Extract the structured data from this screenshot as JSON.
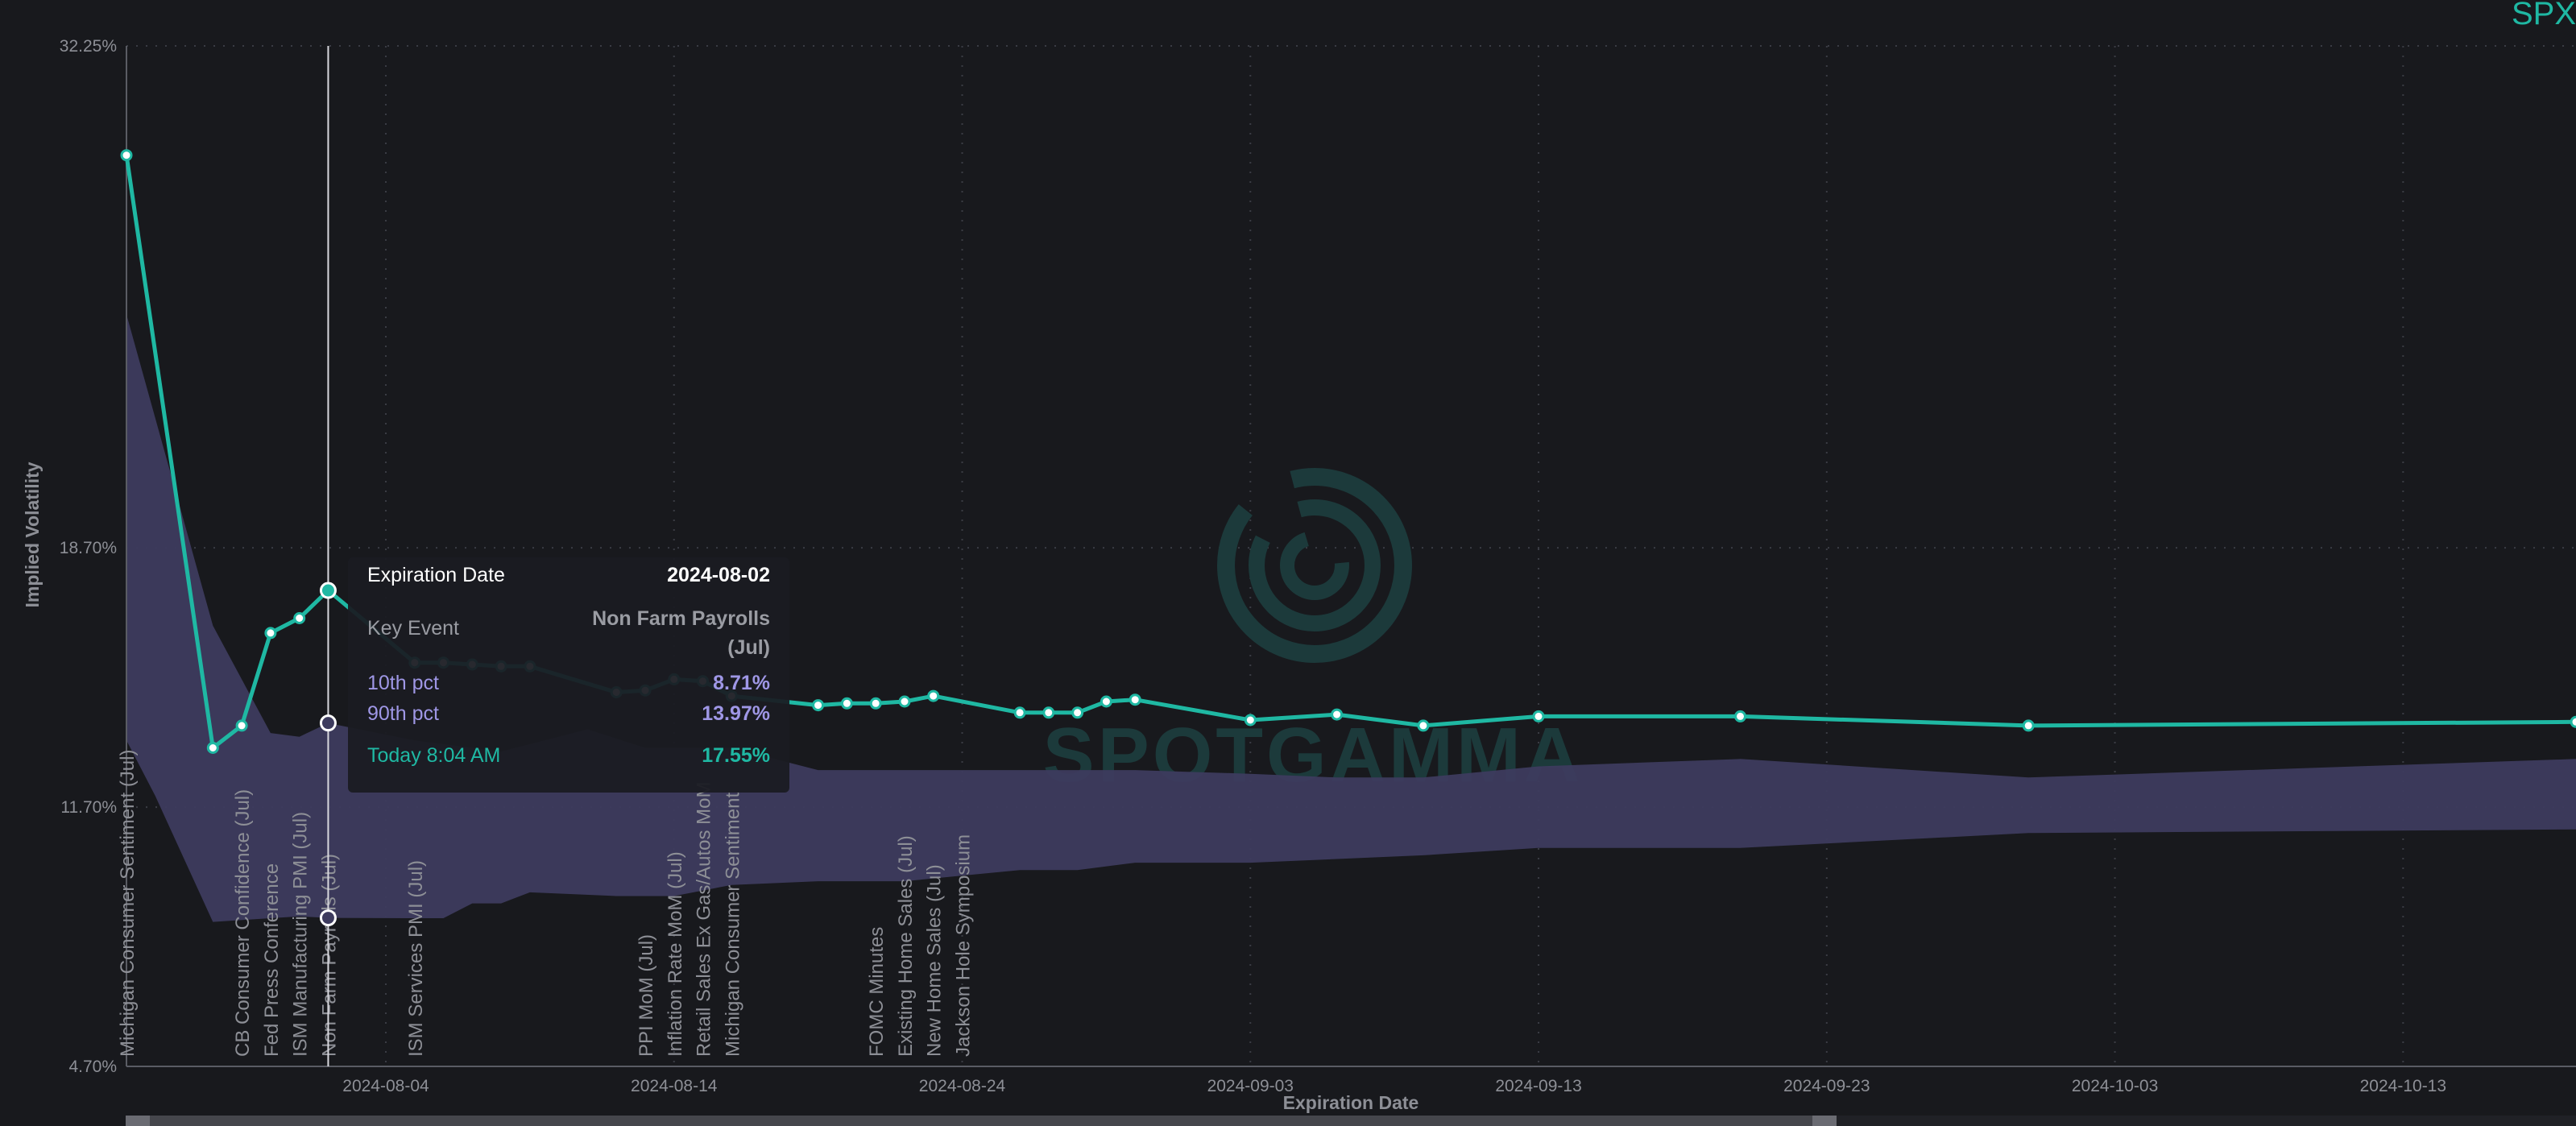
{
  "ticker": "SPX",
  "chart_data": {
    "type": "line",
    "xlabel": "Expiration Date",
    "ylabel": "Implied Volatility",
    "x_range": [
      "2024-07-26",
      "2024-10-19"
    ],
    "y_ticks": [
      4.7,
      11.7,
      18.7,
      32.25
    ],
    "y_tick_labels": [
      "4.70%",
      "11.70%",
      "18.70%",
      "32.25%"
    ],
    "x_ticks": [
      "2024-08-04",
      "2024-08-14",
      "2024-08-24",
      "2024-09-03",
      "2024-09-13",
      "2024-09-23",
      "2024-10-03",
      "2024-10-13"
    ],
    "grid": true,
    "series": [
      {
        "name": "Today 8:04 AM",
        "color": "#1fb8a3",
        "points": [
          [
            "2024-07-26",
            29.3
          ],
          [
            "2024-07-29",
            13.3
          ],
          [
            "2024-07-30",
            13.9
          ],
          [
            "2024-07-31",
            16.4
          ],
          [
            "2024-08-01",
            16.8
          ],
          [
            "2024-08-02",
            17.55
          ],
          [
            "2024-08-05",
            15.6
          ],
          [
            "2024-08-06",
            15.6
          ],
          [
            "2024-08-07",
            15.55
          ],
          [
            "2024-08-08",
            15.5
          ],
          [
            "2024-08-09",
            15.5
          ],
          [
            "2024-08-12",
            14.8
          ],
          [
            "2024-08-13",
            14.85
          ],
          [
            "2024-08-14",
            15.15
          ],
          [
            "2024-08-15",
            15.1
          ],
          [
            "2024-08-16",
            14.7
          ],
          [
            "2024-08-19",
            14.45
          ],
          [
            "2024-08-20",
            14.5
          ],
          [
            "2024-08-21",
            14.5
          ],
          [
            "2024-08-22",
            14.55
          ],
          [
            "2024-08-23",
            14.7
          ],
          [
            "2024-08-26",
            14.25
          ],
          [
            "2024-08-27",
            14.25
          ],
          [
            "2024-08-28",
            14.25
          ],
          [
            "2024-08-29",
            14.55
          ],
          [
            "2024-08-30",
            14.6
          ],
          [
            "2024-09-03",
            14.05
          ],
          [
            "2024-09-06",
            14.2
          ],
          [
            "2024-09-09",
            13.9
          ],
          [
            "2024-09-13",
            14.15
          ],
          [
            "2024-09-20",
            14.15
          ],
          [
            "2024-09-30",
            13.9
          ],
          [
            "2024-10-19",
            14.0
          ]
        ]
      }
    ],
    "band": {
      "lower_name": "10th pct",
      "upper_name": "90th pct",
      "color": "#3d3b5e",
      "upper": [
        [
          "2024-07-26",
          25.0
        ],
        [
          "2024-07-29",
          16.6
        ],
        [
          "2024-07-31",
          13.7
        ],
        [
          "2024-08-01",
          13.6
        ],
        [
          "2024-08-02",
          13.97
        ],
        [
          "2024-08-05",
          13.5
        ],
        [
          "2024-08-08",
          13.2
        ],
        [
          "2024-08-09",
          13.4
        ],
        [
          "2024-08-11",
          13.8
        ],
        [
          "2024-08-13",
          13.3
        ],
        [
          "2024-08-16",
          13.3
        ],
        [
          "2024-08-19",
          12.7
        ],
        [
          "2024-08-30",
          12.7
        ],
        [
          "2024-09-03",
          12.6
        ],
        [
          "2024-09-06",
          12.5
        ],
        [
          "2024-09-09",
          12.5
        ],
        [
          "2024-09-13",
          12.8
        ],
        [
          "2024-09-20",
          13.0
        ],
        [
          "2024-09-30",
          12.5
        ],
        [
          "2024-10-19",
          13.0
        ]
      ],
      "lower": [
        [
          "2024-07-26",
          13.5
        ],
        [
          "2024-07-27",
          12.0
        ],
        [
          "2024-07-29",
          8.6
        ],
        [
          "2024-07-31",
          8.7
        ],
        [
          "2024-08-01",
          8.75
        ],
        [
          "2024-08-02",
          8.71
        ],
        [
          "2024-08-05",
          8.7
        ],
        [
          "2024-08-06",
          8.7
        ],
        [
          "2024-08-07",
          9.1
        ],
        [
          "2024-08-08",
          9.1
        ],
        [
          "2024-08-09",
          9.4
        ],
        [
          "2024-08-12",
          9.3
        ],
        [
          "2024-08-14",
          9.3
        ],
        [
          "2024-08-16",
          9.6
        ],
        [
          "2024-08-19",
          9.7
        ],
        [
          "2024-08-22",
          9.7
        ],
        [
          "2024-08-26",
          10.0
        ],
        [
          "2024-08-28",
          10.0
        ],
        [
          "2024-08-30",
          10.2
        ],
        [
          "2024-09-03",
          10.2
        ],
        [
          "2024-09-09",
          10.4
        ],
        [
          "2024-09-13",
          10.6
        ],
        [
          "2024-09-20",
          10.6
        ],
        [
          "2024-09-30",
          11.0
        ],
        [
          "2024-10-19",
          11.1
        ]
      ]
    },
    "hover_marker": {
      "date": "2024-08-02",
      "lower": 8.71,
      "upper": 13.97,
      "today": 17.55
    },
    "events": [
      {
        "date": "2024-07-26",
        "label": "Michigan Consumer Sentiment (Jul)"
      },
      {
        "date": "2024-07-30",
        "label": "CB Consumer Confidence (Jul)"
      },
      {
        "date": "2024-07-31",
        "label": "Fed Press Conference"
      },
      {
        "date": "2024-08-01",
        "label": "ISM Manufacturing PMI (Jul)"
      },
      {
        "date": "2024-08-02",
        "label": "Non Farm Payrolls (Jul)"
      },
      {
        "date": "2024-08-05",
        "label": "ISM Services PMI (Jul)"
      },
      {
        "date": "2024-08-13",
        "label": "PPI MoM (Jul)"
      },
      {
        "date": "2024-08-14",
        "label": "Inflation Rate MoM (Jul)"
      },
      {
        "date": "2024-08-15",
        "label": "Retail Sales Ex Gas/Autos MoM"
      },
      {
        "date": "2024-08-16",
        "label": "Michigan Consumer Sentiment"
      },
      {
        "date": "2024-08-21",
        "label": "FOMC Minutes"
      },
      {
        "date": "2024-08-22",
        "label": "Existing Home Sales (Jul)"
      },
      {
        "date": "2024-08-23",
        "label": "New Home Sales (Jul)"
      },
      {
        "date": "2024-08-24",
        "label": "Jackson Hole Symposium"
      }
    ]
  },
  "tooltip": {
    "title_label": "Expiration Date",
    "title_value": "2024-08-02",
    "event_label": "Key Event",
    "event_value_line1": "Non Farm Payrolls",
    "event_value_line2": "(Jul)",
    "p10_label": "10th pct",
    "p10_value": "8.71%",
    "p90_label": "90th pct",
    "p90_value": "13.97%",
    "today_label": "Today 8:04 AM",
    "today_value": "17.55%"
  },
  "watermark": "SPOTGAMMA"
}
